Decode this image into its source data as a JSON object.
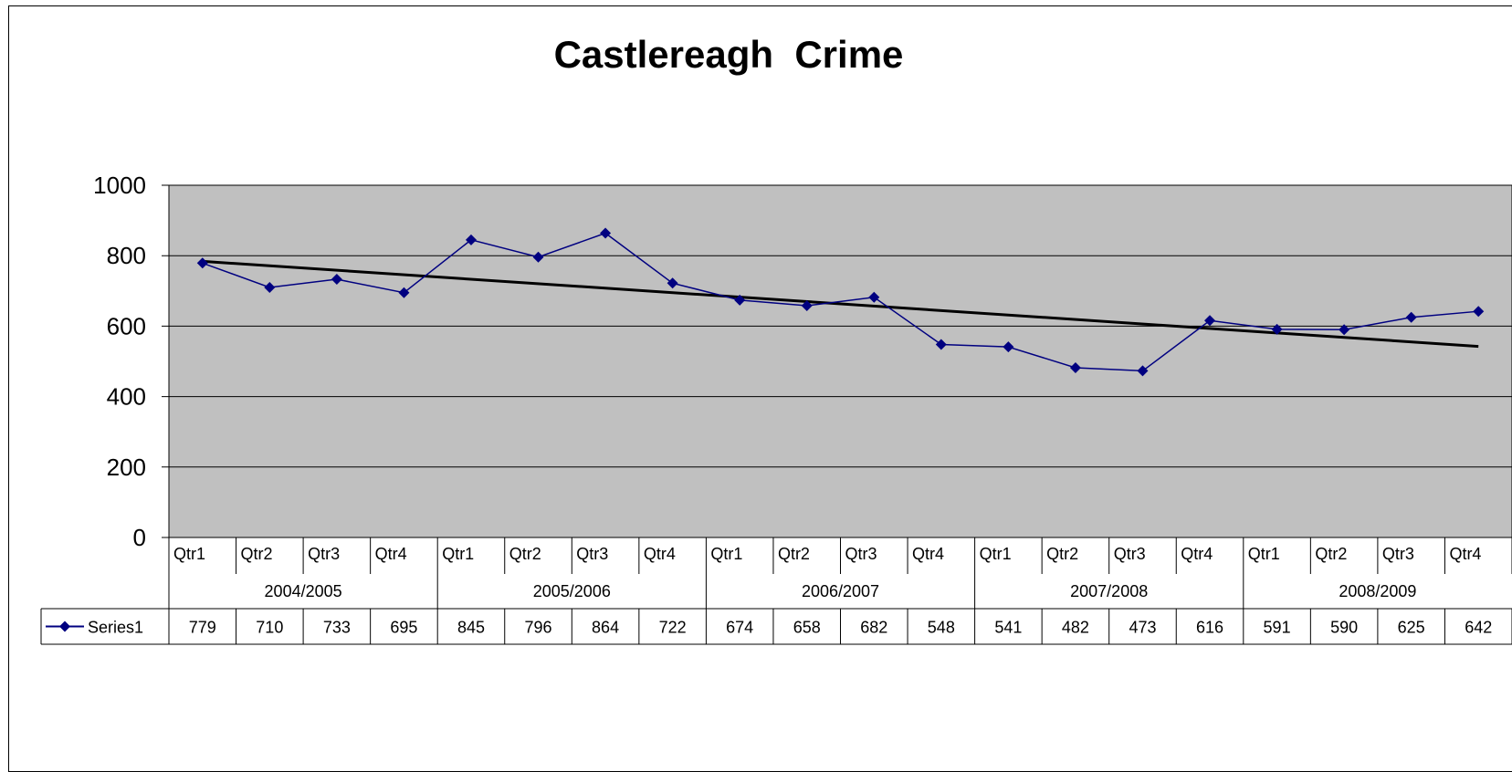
{
  "chart_data": {
    "type": "line",
    "title": "Castlereagh  Crime",
    "y_ticks": [
      0,
      200,
      400,
      600,
      800,
      1000
    ],
    "ylim": [
      0,
      1000
    ],
    "grid": true,
    "plot_background": "#c0c0c0",
    "years": [
      "2004/2005",
      "2005/2006",
      "2006/2007",
      "2007/2008",
      "2008/2009"
    ],
    "quarters": [
      "Qtr1",
      "Qtr2",
      "Qtr3",
      "Qtr4"
    ],
    "series": [
      {
        "name": "Series1",
        "color": "#000080",
        "marker": "diamond",
        "values": [
          779,
          710,
          733,
          695,
          845,
          796,
          864,
          722,
          674,
          658,
          682,
          548,
          541,
          482,
          473,
          616,
          591,
          590,
          625,
          642
        ]
      }
    ],
    "trendline": {
      "type": "linear",
      "color": "#000000"
    },
    "data_table": true
  }
}
